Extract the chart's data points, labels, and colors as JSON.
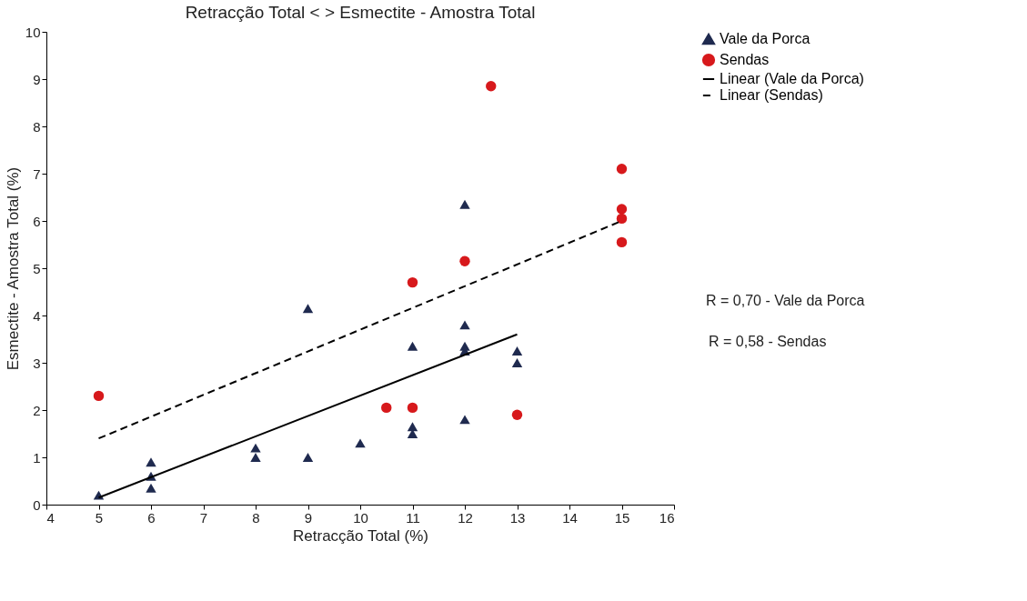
{
  "chart_data": {
    "type": "scatter",
    "title": "Retracção Total < > Esmectite - Amostra Total",
    "xlabel": "Retracção Total  (%)",
    "ylabel": "Esmectite - Amostra Total (%)",
    "xlim": [
      4,
      16
    ],
    "xticks": [
      4,
      5,
      6,
      7,
      8,
      9,
      10,
      11,
      12,
      13,
      14,
      15,
      16
    ],
    "ylim": [
      0,
      10
    ],
    "yticks": [
      0,
      1,
      2,
      3,
      4,
      5,
      6,
      7,
      8,
      9,
      10
    ],
    "grid": false,
    "legend": "right",
    "series": [
      {
        "name": "Vale da Porca",
        "marker": "triangle",
        "color": "#1f2a4f",
        "x": [
          5,
          6,
          6,
          6,
          8,
          8,
          9,
          9,
          10,
          11,
          11,
          11,
          12,
          12,
          12,
          12,
          12,
          13,
          13
        ],
        "values": [
          0.2,
          0.9,
          0.6,
          0.35,
          1.2,
          1.0,
          1.0,
          4.15,
          1.3,
          3.35,
          1.65,
          1.5,
          6.35,
          3.8,
          3.35,
          3.25,
          1.8,
          3.25,
          3.0
        ]
      },
      {
        "name": "Sendas",
        "marker": "circle",
        "color": "#d7191c",
        "x": [
          5,
          10.5,
          11,
          11,
          12,
          12.5,
          13,
          15,
          15,
          15,
          15
        ],
        "values": [
          2.3,
          2.05,
          2.05,
          4.7,
          5.15,
          8.85,
          1.9,
          7.1,
          6.25,
          6.05,
          5.55
        ]
      },
      {
        "name": "Linear (Vale da Porca)",
        "type": "line",
        "line_style": "solid",
        "color": "#000000",
        "x": [
          5,
          13
        ],
        "values": [
          0.15,
          3.6
        ]
      },
      {
        "name": "Linear (Sendas)",
        "type": "line",
        "line_style": "dashed",
        "color": "#000000",
        "x": [
          5,
          15
        ],
        "values": [
          1.4,
          6.0
        ]
      }
    ],
    "annotations": [
      "R = 0,70 - Vale da Porca",
      "R = 0,58 - Sendas"
    ]
  }
}
